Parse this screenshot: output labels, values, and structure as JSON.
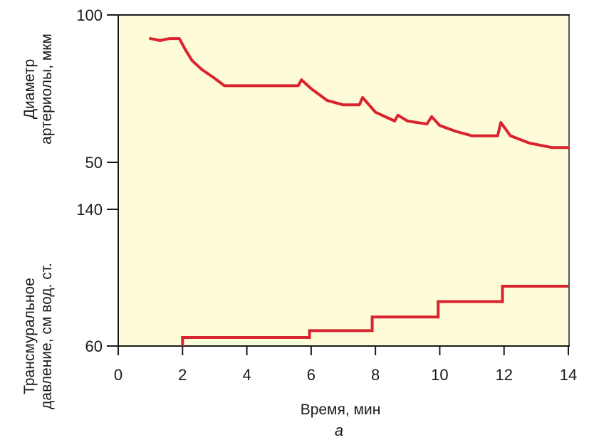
{
  "chart_data": [
    {
      "type": "line",
      "ylabel": [
        "Диаметр",
        "артериолы, мкм"
      ],
      "ylim": [
        50,
        100
      ],
      "yticks": [
        100,
        50
      ],
      "series": [
        {
          "color": "#d9232e",
          "x": [
            1.0,
            1.3,
            1.6,
            1.9,
            2.1,
            2.3,
            2.6,
            3.0,
            3.3,
            4.0,
            5.0,
            5.6,
            5.7,
            6.0,
            6.5,
            7.0,
            7.5,
            7.6,
            8.0,
            8.6,
            8.7,
            9.0,
            9.6,
            9.75,
            10.0,
            10.5,
            11.0,
            11.8,
            11.9,
            12.2,
            12.8,
            13.5,
            14.0
          ],
          "y": [
            92,
            91.3,
            92,
            92,
            88,
            84.5,
            81.5,
            78.5,
            76,
            76,
            76,
            76,
            78,
            75,
            71,
            69.5,
            69.5,
            72,
            67,
            64,
            66,
            64,
            63,
            65.5,
            62.5,
            60.5,
            59,
            59,
            63.5,
            59,
            56.5,
            55,
            55
          ]
        }
      ]
    },
    {
      "type": "line",
      "ylabel": [
        "Трансмуральное",
        "давление, см вод. ст."
      ],
      "ylim": [
        60,
        140
      ],
      "yticks": [
        140,
        60
      ],
      "xlabel": "Время, мин",
      "xlim": [
        0,
        14
      ],
      "xticks": [
        0,
        2,
        4,
        6,
        8,
        10,
        12,
        14
      ],
      "series": [
        {
          "color": "#d9232e",
          "x": [
            2.0,
            2.0,
            5.95,
            5.95,
            7.9,
            7.9,
            9.95,
            9.95,
            11.95,
            11.95,
            14.0
          ],
          "y": [
            60,
            65,
            65,
            69,
            69,
            77,
            77,
            86,
            86,
            95,
            95
          ]
        }
      ]
    }
  ],
  "caption": "а",
  "colors": {
    "background": "#fdfbd8",
    "line": "#d9232e",
    "axis": "#1a1a1a"
  }
}
